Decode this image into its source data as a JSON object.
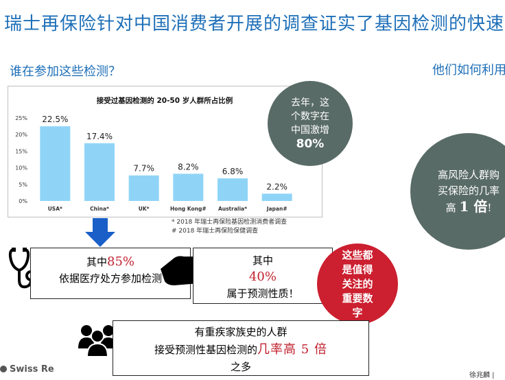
{
  "header": {
    "title": "瑞士再保险针对中国消费者开展的调查证实了基因检测的快速"
  },
  "sections": {
    "left_question": "谁在参加这些检测？",
    "right_question": "他们如何利用"
  },
  "chart_data": {
    "type": "bar",
    "title": "接受过基因检测的 20-50 岁人群所占比例",
    "categories": [
      "USA*",
      "China*",
      "UK*",
      "Hong Kong#",
      "Australia*",
      "Japan#"
    ],
    "values": [
      22.5,
      17.4,
      7.7,
      8.2,
      6.8,
      2.2
    ],
    "value_labels": [
      "22.5%",
      "17.4%",
      "7.7%",
      "8.2%",
      "6.8%",
      "2.2%"
    ],
    "yticks": [
      "0%",
      "5%",
      "10%",
      "15%",
      "20%",
      "25%"
    ],
    "ylim": [
      0,
      25
    ],
    "bar_color": "#8fd4f7",
    "grid": false
  },
  "notes": {
    "line1": "* 2018 年瑞士再保险基因检测消费者调查",
    "line2": "# 2018 年瑞士再保险保健调查"
  },
  "bubble_left": {
    "line1": "去年，这",
    "line2": "个数字在",
    "line3": "中国激增",
    "big": "80%"
  },
  "bubble_right": {
    "line1": "高风险人群购",
    "line2": "买保险的几率",
    "pre": "高",
    "big": "1 倍",
    "post": "!"
  },
  "bubble_red": {
    "line1": "这些都",
    "line2": "是值得",
    "line3": "关注的",
    "line4": "重要数",
    "line5": "字"
  },
  "box1": {
    "pre": "其中",
    "pct": "85%",
    "line2": "依据医疗处方参加检测"
  },
  "box2": {
    "line1": "其中",
    "pct": "40%",
    "line3": "属于预测性质！"
  },
  "box3": {
    "line1": "有重疾家族史的人群",
    "line2a": "接受预测性基因检测的",
    "line2b": "几率高 5 倍",
    "line3": "之多"
  },
  "footer": {
    "logo": "Swiss Re",
    "signature": "徐兆麟 |"
  },
  "colors": {
    "accent_blue": "#1e6fb8",
    "bubble_grey": "#596b66",
    "alert_red": "#cc1f2f",
    "arrow_blue": "#1a5fc8"
  },
  "icons": [
    "stethoscope-icon",
    "pointing-hand-icon",
    "people-group-icon",
    "down-arrow-icon"
  ]
}
